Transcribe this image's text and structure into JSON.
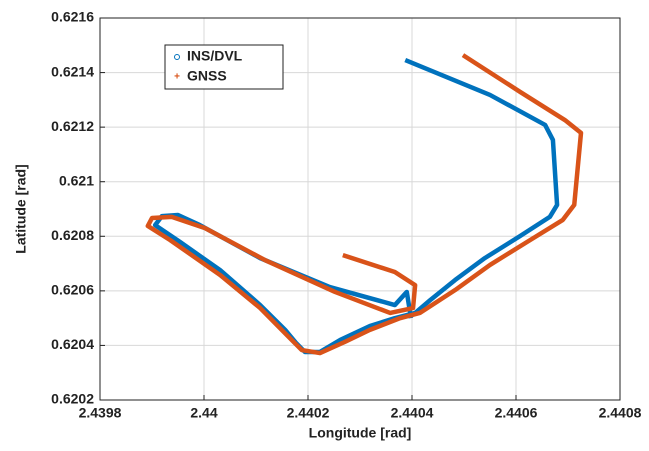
{
  "chart_data": {
    "type": "line",
    "xlabel": "Longitude [rad]",
    "ylabel": "Latitude [rad]",
    "xlim": [
      2.4398,
      2.4408
    ],
    "xticks": [
      2.4398,
      2.44,
      2.4402,
      2.4404,
      2.4406,
      2.4408
    ],
    "ylim": [
      0.6202,
      0.6216
    ],
    "yticks": [
      0.6202,
      0.6204,
      0.6206,
      0.6208,
      0.621,
      0.6212,
      0.6214,
      0.6216
    ],
    "grid": true,
    "legend": "upper left",
    "series": [
      {
        "name": "INS/DVL",
        "color": "#0072bd",
        "marker": "o",
        "x": [
          2.440387,
          2.44055,
          2.440656,
          2.440671,
          2.440679,
          2.440665,
          2.440608,
          2.44054,
          2.440483,
          2.440435,
          2.440406,
          2.440367,
          2.440319,
          2.440262,
          2.440223,
          2.440194,
          2.440177,
          2.440156,
          2.440108,
          2.440031,
          2.439954,
          2.439906,
          2.439919,
          2.43995,
          2.439992,
          2.440108,
          2.440242,
          2.440367,
          2.44039,
          2.440398
        ],
        "values": [
          0.621446,
          0.621318,
          0.621208,
          0.621153,
          0.620915,
          0.620871,
          0.620801,
          0.62072,
          0.62064,
          0.620566,
          0.620519,
          0.6205,
          0.620471,
          0.62042,
          0.620376,
          0.620376,
          0.620409,
          0.620457,
          0.620548,
          0.620676,
          0.620779,
          0.620841,
          0.620874,
          0.620878,
          0.620841,
          0.62072,
          0.620614,
          0.620548,
          0.620596,
          0.6205
        ]
      },
      {
        "name": "GNSS",
        "color": "#d95319",
        "marker": "+",
        "x": [
          2.440498,
          2.440608,
          2.440694,
          2.440725,
          2.440712,
          2.44069,
          2.440627,
          2.44055,
          2.440483,
          2.440415,
          2.440377,
          2.440319,
          2.440271,
          2.440223,
          2.440188,
          2.440165,
          2.440108,
          2.440031,
          2.439935,
          2.439892,
          2.4399,
          2.439938,
          2.440002,
          2.440117,
          2.440252,
          2.440358,
          2.440402,
          2.440406,
          2.440367,
          2.440267
        ],
        "values": [
          0.621464,
          0.621329,
          0.621226,
          0.621179,
          0.620915,
          0.62086,
          0.620786,
          0.620695,
          0.620603,
          0.620519,
          0.6205,
          0.620457,
          0.620413,
          0.620372,
          0.620383,
          0.620427,
          0.620537,
          0.620658,
          0.620786,
          0.620838,
          0.620867,
          0.620871,
          0.62083,
          0.620713,
          0.620596,
          0.620519,
          0.620537,
          0.620621,
          0.620669,
          0.620731
        ]
      }
    ]
  }
}
